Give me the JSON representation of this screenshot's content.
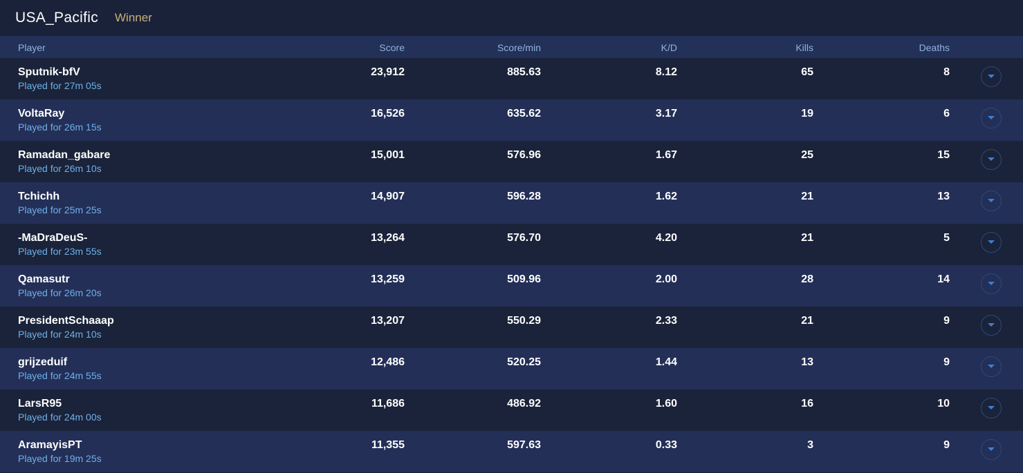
{
  "team": {
    "name": "USA_Pacific",
    "status": "Winner"
  },
  "columns": {
    "player": "Player",
    "score": "Score",
    "score_per_min": "Score/min",
    "kd": "K/D",
    "kills": "Kills",
    "deaths": "Deaths"
  },
  "players": [
    {
      "name": "Sputnik-bfV",
      "played": "Played for 27m 05s",
      "score": "23,912",
      "score_per_min": "885.63",
      "kd": "8.12",
      "kills": "65",
      "deaths": "8"
    },
    {
      "name": "VoltaRay",
      "played": "Played for 26m 15s",
      "score": "16,526",
      "score_per_min": "635.62",
      "kd": "3.17",
      "kills": "19",
      "deaths": "6"
    },
    {
      "name": "Ramadan_gabare",
      "played": "Played for 26m 10s",
      "score": "15,001",
      "score_per_min": "576.96",
      "kd": "1.67",
      "kills": "25",
      "deaths": "15"
    },
    {
      "name": "Tchichh",
      "played": "Played for 25m 25s",
      "score": "14,907",
      "score_per_min": "596.28",
      "kd": "1.62",
      "kills": "21",
      "deaths": "13"
    },
    {
      "name": "-MaDraDeuS-",
      "played": "Played for 23m 55s",
      "score": "13,264",
      "score_per_min": "576.70",
      "kd": "4.20",
      "kills": "21",
      "deaths": "5"
    },
    {
      "name": "Qamasutr",
      "played": "Played for 26m 20s",
      "score": "13,259",
      "score_per_min": "509.96",
      "kd": "2.00",
      "kills": "28",
      "deaths": "14"
    },
    {
      "name": "PresidentSchaaap",
      "played": "Played for 24m 10s",
      "score": "13,207",
      "score_per_min": "550.29",
      "kd": "2.33",
      "kills": "21",
      "deaths": "9"
    },
    {
      "name": "grijzeduif",
      "played": "Played for 24m 55s",
      "score": "12,486",
      "score_per_min": "520.25",
      "kd": "1.44",
      "kills": "13",
      "deaths": "9"
    },
    {
      "name": "LarsR95",
      "played": "Played for 24m 00s",
      "score": "11,686",
      "score_per_min": "486.92",
      "kd": "1.60",
      "kills": "16",
      "deaths": "10"
    },
    {
      "name": "AramayisPT",
      "played": "Played for 19m 25s",
      "score": "11,355",
      "score_per_min": "597.63",
      "kd": "0.33",
      "kills": "3",
      "deaths": "9"
    }
  ],
  "icons": {
    "expand": "chevron-down-icon"
  },
  "colors": {
    "accent": "#6fb0ea",
    "winner": "#c8b27a",
    "icon": "#3d7fd6"
  }
}
